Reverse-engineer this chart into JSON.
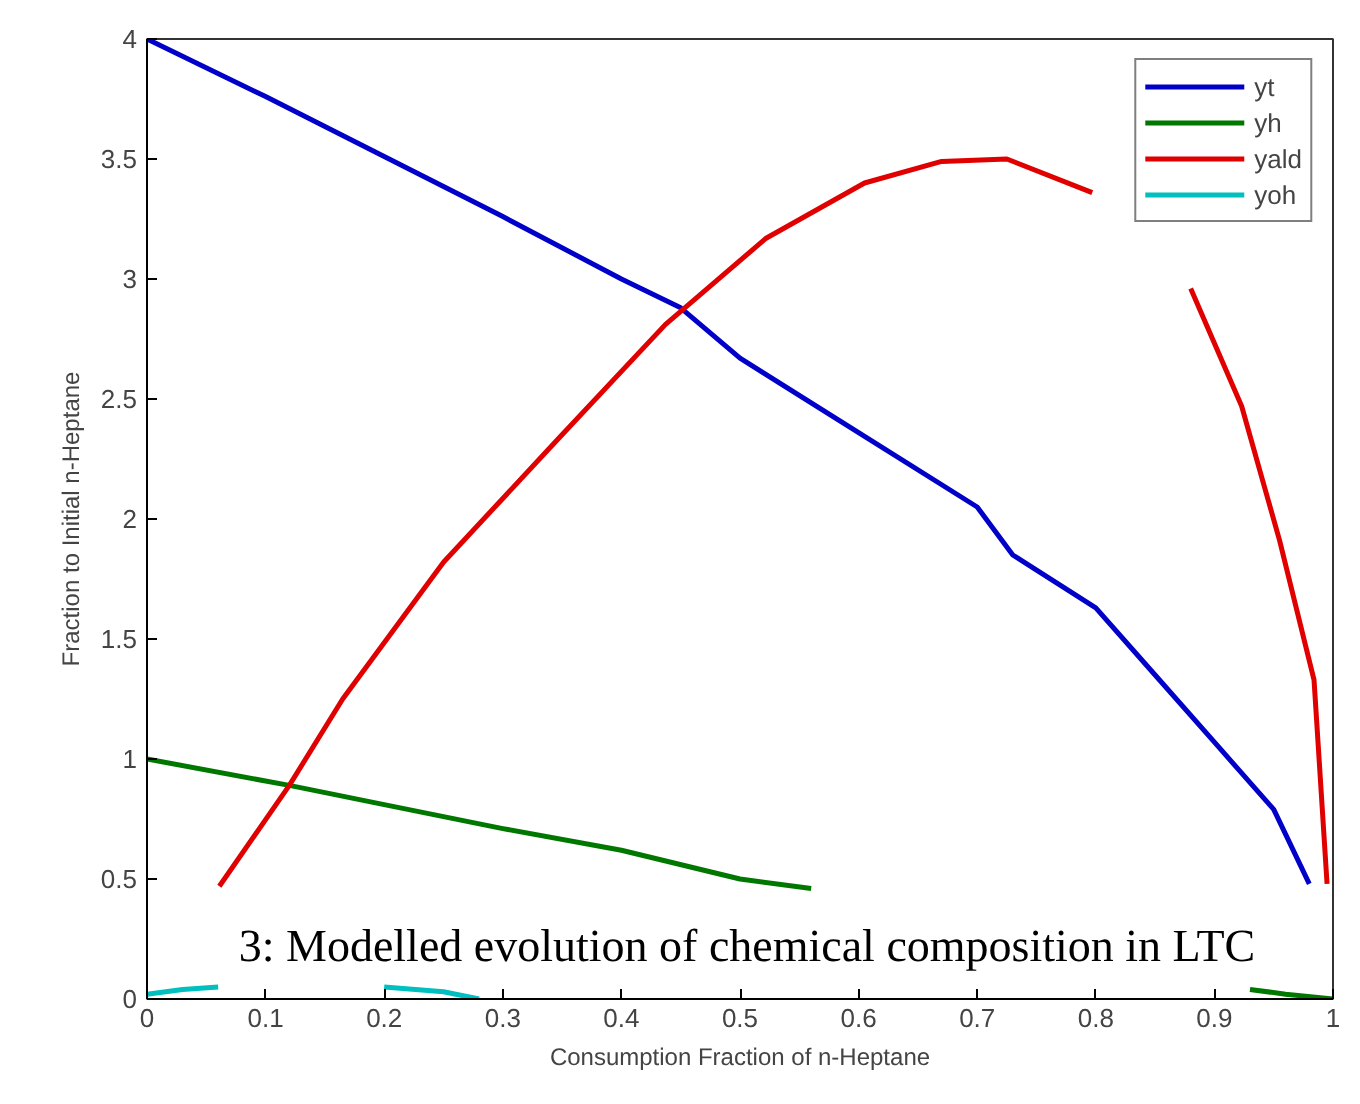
{
  "chart_data": {
    "type": "line",
    "xlabel": "Consumption Fraction of n-Heptane",
    "ylabel": "Fraction to Initial n-Heptane",
    "annotations": [
      "3: Modelled evolution of chemical composition in LTC"
    ],
    "xlim": [
      0,
      1
    ],
    "ylim": [
      0,
      4
    ],
    "xticks": [
      0,
      0.1,
      0.2,
      0.3,
      0.4,
      0.5,
      0.6,
      0.7,
      0.8,
      0.9,
      1
    ],
    "yticks": [
      0,
      0.5,
      1,
      1.5,
      2,
      2.5,
      3,
      3.5,
      4
    ],
    "grid": false,
    "legend": "top right",
    "line_style": "solid",
    "marker": "none",
    "series": [
      {
        "name": "yt",
        "color": "#0000c8",
        "x": [
          0,
          0.1,
          0.2,
          0.3,
          0.4,
          0.45,
          0.5,
          0.6,
          0.7,
          0.73,
          0.8,
          0.85,
          0.9,
          0.95,
          0.98
        ],
        "values": [
          4,
          3.76,
          3.51,
          3.26,
          3.0,
          2.88,
          2.67,
          2.36,
          2.05,
          1.85,
          1.63,
          1.35,
          1.07,
          0.79,
          0.48
        ]
      },
      {
        "name": "yh",
        "color": "#007800",
        "x": [
          0,
          0.12,
          0.2,
          0.3,
          0.4,
          0.5,
          0.56,
          0.75,
          0.93,
          0.96,
          1
        ],
        "values": [
          1,
          0.89,
          0.81,
          0.71,
          0.62,
          0.5,
          0.46,
          null,
          0.04,
          0.02,
          0
        ]
      },
      {
        "name": "yald",
        "color": "#e00000",
        "x": [
          0.061,
          0.12,
          0.165,
          0.25,
          0.346,
          0.437,
          0.522,
          0.605,
          0.67,
          0.725,
          0.797,
          0.84,
          0.88,
          0.923,
          0.955,
          0.984,
          0.995
        ],
        "values": [
          0.47,
          0.89,
          1.25,
          1.82,
          2.33,
          2.81,
          3.17,
          3.4,
          3.49,
          3.5,
          3.36,
          null,
          2.96,
          2.47,
          1.91,
          1.33,
          0.48
        ]
      },
      {
        "name": "yoh",
        "color": "#00bfbf",
        "x": [
          0,
          0.03,
          0.06,
          0.12,
          0.2,
          0.25,
          0.28
        ],
        "values": [
          0.02,
          0.04,
          0.05,
          null,
          0.05,
          0.03,
          0
        ]
      }
    ]
  }
}
